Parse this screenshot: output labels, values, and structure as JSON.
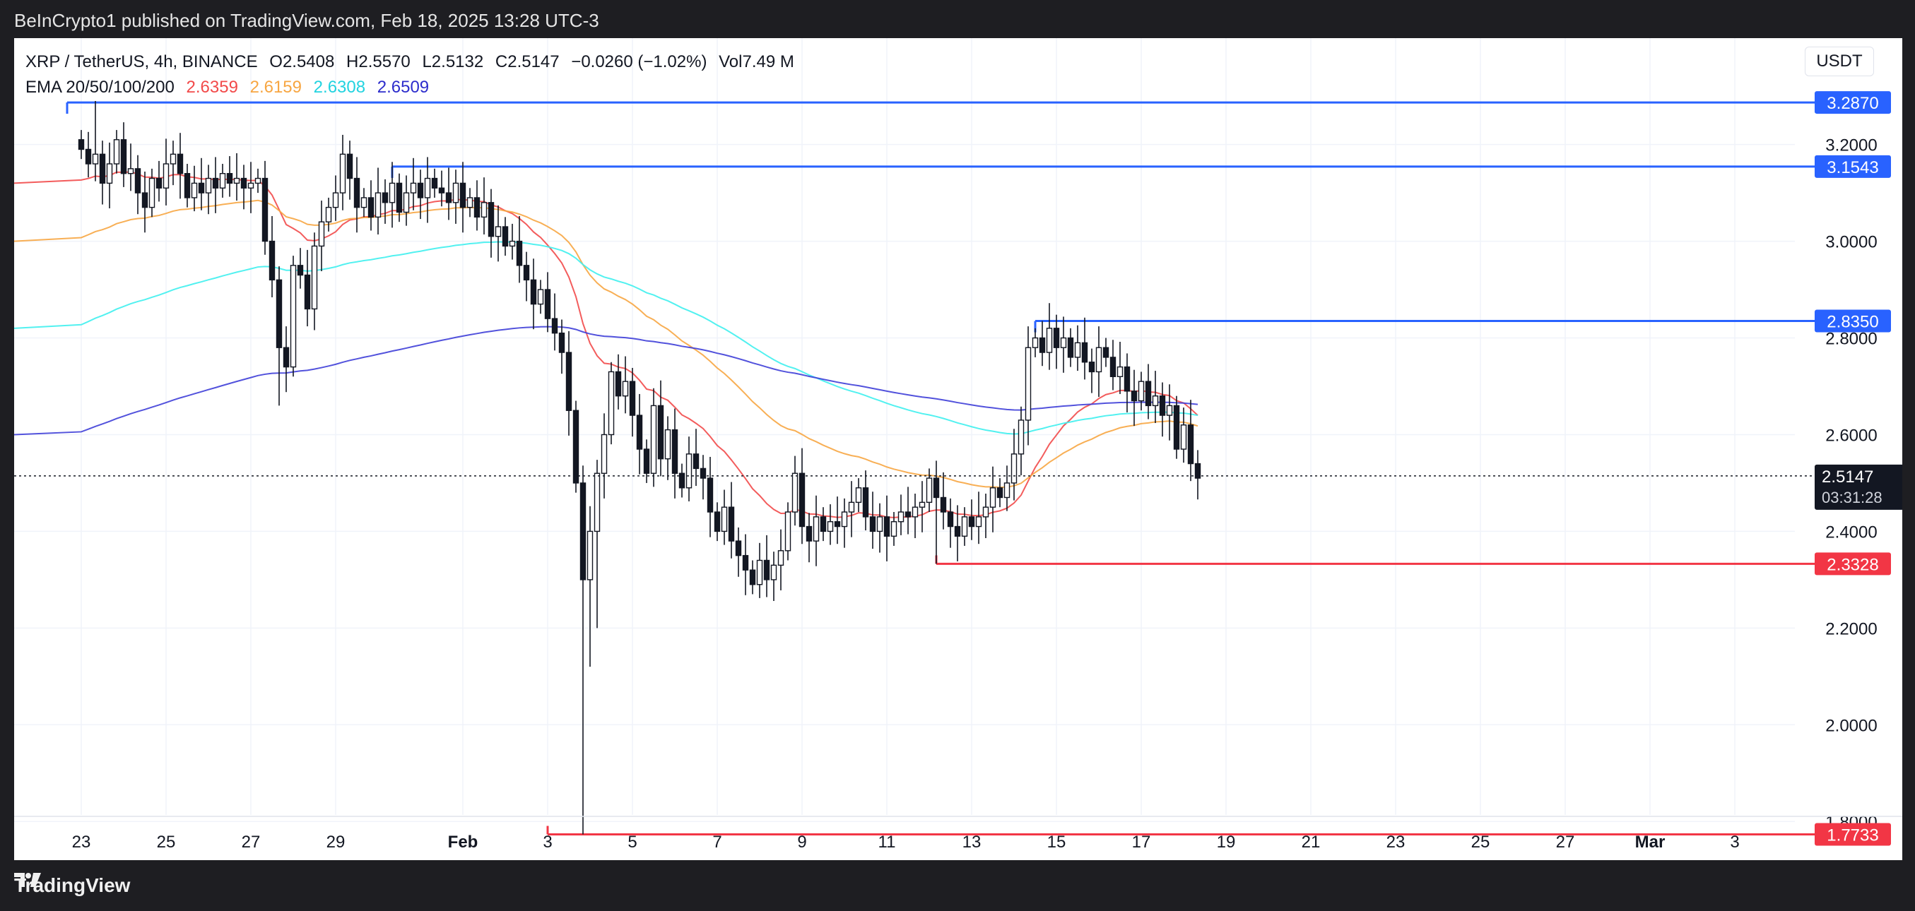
{
  "header": {
    "published": "BeInCrypto1 published on TradingView.com, Feb 18, 2025 13:28 UTC-3"
  },
  "footer": {
    "brand": "TradingView"
  },
  "legend": {
    "symbol": "XRP / TetherUS, 4h, BINANCE",
    "open_label": "O",
    "open": "2.5408",
    "high_label": "H",
    "high": "2.5570",
    "low_label": "L",
    "low": "2.5132",
    "close_label": "C",
    "close": "2.5147",
    "change": "−0.0260 (−1.02%)",
    "volume_label": "Vol",
    "volume": "7.49 M",
    "ema_label": "EMA 20/50/100/200",
    "ema20": "2.6359",
    "ema50": "2.6159",
    "ema100": "2.6308",
    "ema200": "2.6509"
  },
  "currency_button": "USDT",
  "colors": {
    "ema20": "#f24a4a",
    "ema50": "#f7a642",
    "ema100": "#3ff0ee",
    "ema200": "#3f3fd8",
    "resistance": "#2962ff",
    "support": "#f23645",
    "candle": "#131722"
  },
  "chart_data": {
    "type": "candlestick",
    "x_axis": {
      "ticks": [
        {
          "label": "23",
          "idx": 0
        },
        {
          "label": "25",
          "idx": 12
        },
        {
          "label": "27",
          "idx": 24
        },
        {
          "label": "29",
          "idx": 36
        },
        {
          "label": "Feb",
          "idx": 54
        },
        {
          "label": "3",
          "idx": 66
        },
        {
          "label": "5",
          "idx": 78
        },
        {
          "label": "7",
          "idx": 90
        },
        {
          "label": "9",
          "idx": 102
        },
        {
          "label": "11",
          "idx": 114
        },
        {
          "label": "13",
          "idx": 126
        },
        {
          "label": "15",
          "idx": 138
        },
        {
          "label": "17",
          "idx": 150
        },
        {
          "label": "19",
          "idx": 162
        },
        {
          "label": "21",
          "idx": 174
        },
        {
          "label": "23",
          "idx": 186
        },
        {
          "label": "25",
          "idx": 198
        },
        {
          "label": "27",
          "idx": 210
        },
        {
          "label": "Mar",
          "idx": 222
        },
        {
          "label": "3",
          "idx": 234
        }
      ]
    },
    "y_axis": {
      "ticks": [
        "3.2000",
        "3.0000",
        "2.8000",
        "2.6000",
        "2.4000",
        "2.2000",
        "2.0000",
        "1.8000"
      ],
      "range": [
        1.72,
        3.42
      ]
    },
    "current_price": {
      "value": "2.5147",
      "countdown": "03:31:28"
    },
    "levels": [
      {
        "value": "3.2870",
        "type": "resistance",
        "start_idx": -2
      },
      {
        "value": "3.1543",
        "type": "resistance",
        "start_idx": 44
      },
      {
        "value": "2.8350",
        "type": "resistance",
        "start_idx": 135
      },
      {
        "value": "2.3328",
        "type": "support",
        "start_idx": 121
      },
      {
        "value": "1.7733",
        "type": "support",
        "start_idx": 66
      }
    ],
    "candles_closes": [
      3.19,
      3.16,
      3.18,
      3.12,
      3.16,
      3.21,
      3.14,
      3.15,
      3.1,
      3.07,
      3.13,
      3.11,
      3.16,
      3.18,
      3.14,
      3.09,
      3.12,
      3.1,
      3.13,
      3.11,
      3.14,
      3.12,
      3.13,
      3.11,
      3.12,
      3.13,
      3.0,
      2.92,
      2.78,
      2.74,
      2.95,
      2.93,
      2.86,
      2.99,
      3.04,
      3.07,
      3.1,
      3.18,
      3.13,
      3.07,
      3.09,
      3.05,
      3.1,
      3.08,
      3.12,
      3.06,
      3.1,
      3.12,
      3.09,
      3.13,
      3.11,
      3.1,
      3.08,
      3.12,
      3.07,
      3.09,
      3.05,
      3.08,
      3.01,
      3.03,
      2.99,
      3.0,
      2.95,
      2.92,
      2.87,
      2.9,
      2.84,
      2.81,
      2.77,
      2.65,
      2.5,
      2.3,
      2.4,
      2.52,
      2.6,
      2.73,
      2.68,
      2.71,
      2.64,
      2.57,
      2.52,
      2.66,
      2.55,
      2.61,
      2.52,
      2.49,
      2.56,
      2.53,
      2.51,
      2.44,
      2.4,
      2.45,
      2.38,
      2.35,
      2.32,
      2.29,
      2.34,
      2.3,
      2.33,
      2.36,
      2.44,
      2.52,
      2.41,
      2.38,
      2.43,
      2.4,
      2.42,
      2.41,
      2.44,
      2.46,
      2.49,
      2.43,
      2.4,
      2.43,
      2.39,
      2.42,
      2.44,
      2.43,
      2.45,
      2.46,
      2.51,
      2.47,
      2.44,
      2.41,
      2.39,
      2.43,
      2.41,
      2.43,
      2.45,
      2.49,
      2.47,
      2.5,
      2.56,
      2.63,
      2.78,
      2.8,
      2.77,
      2.82,
      2.78,
      2.8,
      2.76,
      2.79,
      2.75,
      2.73,
      2.78,
      2.76,
      2.72,
      2.74,
      2.69,
      2.67,
      2.71,
      2.66,
      2.68,
      2.64,
      2.66,
      2.57,
      2.62,
      2.54,
      2.51
    ]
  }
}
